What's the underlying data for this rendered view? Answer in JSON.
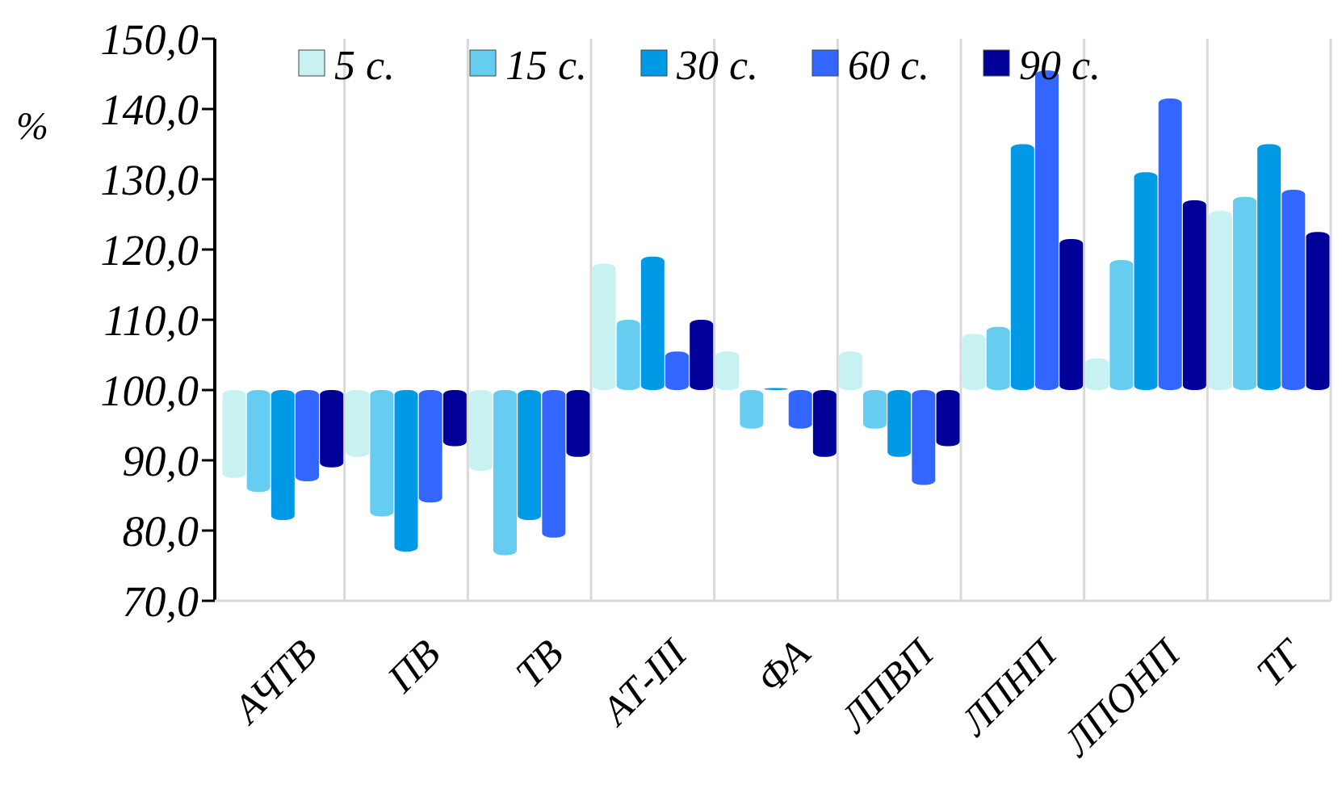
{
  "chart_data": {
    "type": "bar",
    "ylabel": "%",
    "categories": [
      "АЧТВ",
      "ПВ",
      "ТВ",
      "АТ-III",
      "ФА",
      "ЛПВП",
      "ЛПНП",
      "ЛПОНП",
      "ТГ"
    ],
    "series": [
      {
        "name": "5 с.",
        "color": "#c8f2f2",
        "base": [
          100,
          100,
          100,
          100,
          100,
          100,
          100,
          100,
          100
        ],
        "values": [
          -12.5,
          -9.5,
          -11.5,
          18,
          5.5,
          5.5,
          8,
          4.5,
          25.5
        ]
      },
      {
        "name": "15 с.",
        "color": "#66ccf0",
        "base": [
          100,
          100,
          100,
          100,
          100,
          100,
          100,
          100,
          100
        ],
        "values": [
          -14.5,
          -18,
          -23.5,
          10,
          -5.5,
          -5.5,
          9,
          18.5,
          27.5
        ]
      },
      {
        "name": "30 с.",
        "color": "#0099e6",
        "base": [
          100,
          100,
          100,
          100,
          100,
          100,
          100,
          100,
          100
        ],
        "values": [
          -18.5,
          -23,
          -18.5,
          19,
          0.3,
          -9.5,
          35,
          31,
          35
        ]
      },
      {
        "name": "60 с.",
        "color": "#3366ff",
        "base": [
          100,
          100,
          100,
          100,
          100,
          100,
          100,
          100,
          100
        ],
        "values": [
          -13,
          -16,
          -21,
          5.5,
          -5.5,
          -13.5,
          45.5,
          41.5,
          28.5
        ]
      },
      {
        "name": "90 с.",
        "color": "#000099",
        "base": [
          100,
          100,
          100,
          100,
          100,
          100,
          100,
          100,
          100
        ],
        "values": [
          -11,
          -8,
          -9.5,
          10,
          -9.5,
          -8,
          21.5,
          27,
          22.5
        ]
      }
    ],
    "ylim": [
      70,
      150
    ],
    "yticks": [
      {
        "value": 70,
        "label": "70,0"
      },
      {
        "value": 80,
        "label": "80,0"
      },
      {
        "value": 90,
        "label": "90,0"
      },
      {
        "value": 100,
        "label": "100,0"
      },
      {
        "value": 110,
        "label": "110,0"
      },
      {
        "value": 120,
        "label": "120,0"
      },
      {
        "value": 130,
        "label": "130,0"
      },
      {
        "value": 140,
        "label": "140,0"
      },
      {
        "value": 150,
        "label": "150,0"
      }
    ],
    "grid": "x",
    "legend": "top"
  }
}
